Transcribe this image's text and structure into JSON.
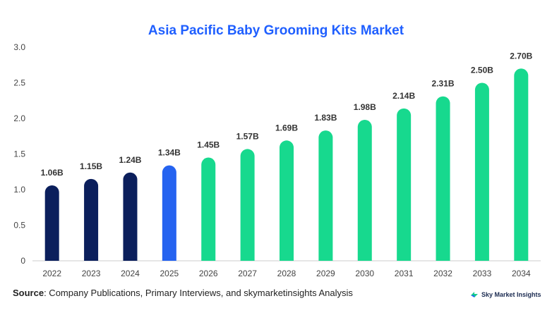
{
  "chart_data": {
    "type": "bar",
    "title": "Asia Pacific Baby Grooming Kits Market",
    "categories": [
      "2022",
      "2023",
      "2024",
      "2025",
      "2026",
      "2027",
      "2028",
      "2029",
      "2030",
      "2031",
      "2032",
      "2033",
      "2034"
    ],
    "values": [
      1.06,
      1.15,
      1.24,
      1.34,
      1.45,
      1.57,
      1.69,
      1.83,
      1.98,
      2.14,
      2.31,
      2.5,
      2.7
    ],
    "data_labels": [
      "1.06B",
      "1.15B",
      "1.24B",
      "1.34B",
      "1.45B",
      "1.57B",
      "1.69B",
      "1.83B",
      "1.98B",
      "2.14B",
      "2.31B",
      "2.50B",
      "2.70B"
    ],
    "yticks": [
      "0",
      "0.5",
      "1.0",
      "1.5",
      "2.0",
      "2.5",
      "3.0"
    ],
    "ylim": [
      0,
      3.0
    ],
    "grid": false,
    "colors": {
      "historical": "#0b1f5c",
      "base_year": "#2563f0",
      "forecast": "#17d98e",
      "title": "#1f5fff",
      "axis": "#cccccc"
    },
    "historical_count": 3,
    "base_year_index": 3
  },
  "source": {
    "label": "Source",
    "text": ": Company Publications, Primary Interviews, and skymarketinsights Analysis"
  },
  "brand": {
    "name": "Sky Market Insights",
    "icon": "sky-market-insights-logo-icon"
  }
}
